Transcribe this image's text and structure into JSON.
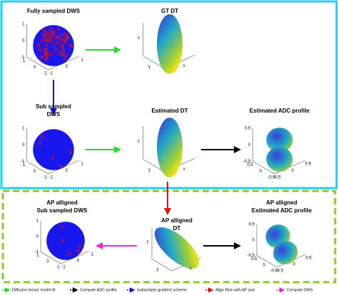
{
  "plots": [
    {
      "title": [
        "Fully sampled DWS"
      ],
      "zticks": [
        "1",
        "0",
        "-1"
      ],
      "yticks": [
        "1",
        "0",
        "-1"
      ],
      "xticks": [
        "-1",
        "0",
        "1"
      ]
    },
    {
      "title": [
        "GT DT"
      ],
      "axis_labels": [
        "z",
        "y",
        "x"
      ]
    },
    {
      "title": [
        "Sub sampled",
        "DWS"
      ],
      "zticks": [
        "1",
        "0",
        "-1"
      ],
      "yticks": [
        "1",
        "0",
        "-1"
      ],
      "xticks": [
        "-1",
        "0",
        "1"
      ]
    },
    {
      "title": [
        "Estimated DT"
      ],
      "axis_labels": [
        "z",
        "y",
        "x"
      ]
    },
    {
      "title": [
        "Estimated ADC profile"
      ],
      "zticks": [
        "0.5",
        "0",
        "-0.5"
      ],
      "yticks": [
        "0.5",
        "0",
        "-0.5"
      ],
      "xticks": [
        "-0.5",
        "0",
        "0.5"
      ]
    },
    {
      "title": [
        "AP alligned",
        "Sub sampled DWS"
      ],
      "zticks": [
        "1",
        "0",
        "-1"
      ],
      "yticks": [
        "1",
        "0",
        "-1"
      ],
      "xticks": [
        "-1",
        "0",
        "1"
      ]
    },
    {
      "title": [
        "AP alligned",
        "DT"
      ],
      "axis_labels": [
        "z",
        "y",
        "x"
      ]
    },
    {
      "title": [
        "AP alligned",
        "Estimated ADC profile"
      ],
      "zticks": [
        "0.5",
        "0",
        "-0.5"
      ],
      "yticks": [
        "0.5",
        "0",
        "-0.5"
      ],
      "xticks": [
        "-0.5",
        "0",
        "0.5"
      ]
    }
  ],
  "legend": [
    "Diffusion tensor model fit",
    "Compute ADC profile",
    "Subsample gradient scheme",
    "Align fibre with AP axis",
    "Compute DWS"
  ]
}
